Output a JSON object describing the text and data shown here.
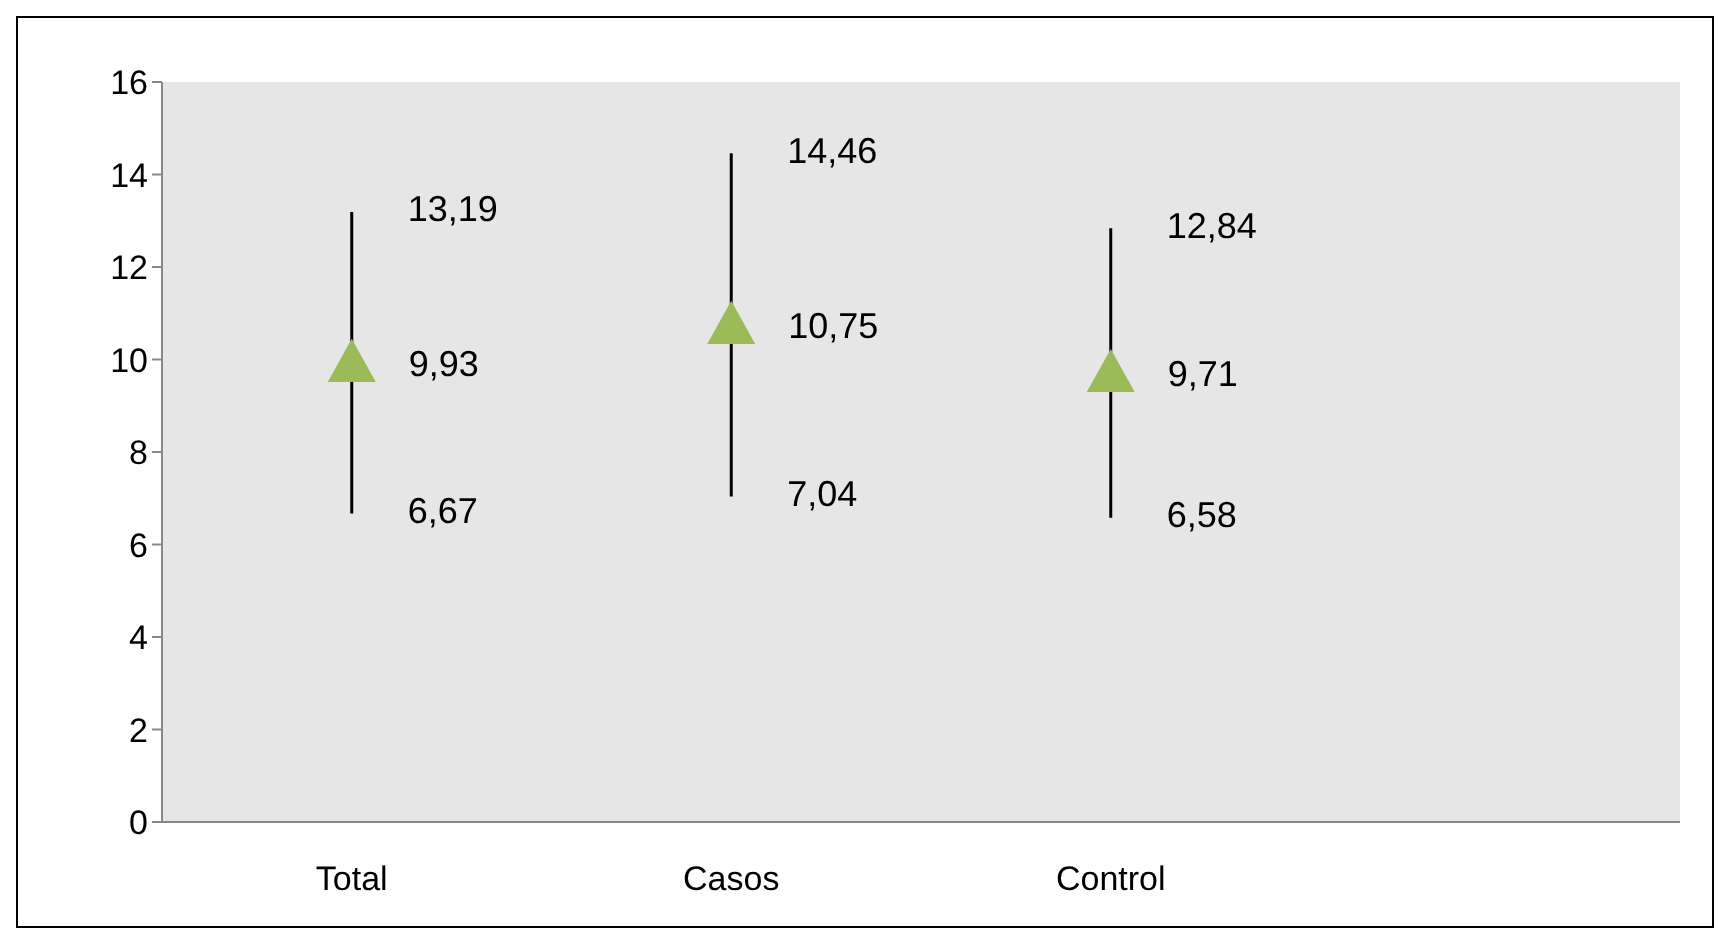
{
  "chart_data": {
    "type": "scatter",
    "categories": [
      "Total",
      "Casos",
      "Control",
      null
    ],
    "series": [
      {
        "color": "#9bbb59",
        "values": [
          9.93,
          10.75,
          9.71,
          null
        ],
        "errors": [
          [
            6.67,
            13.19
          ],
          [
            7.04,
            14.46
          ],
          [
            6.58,
            12.84
          ],
          null
        ],
        "value_labels": [
          "9,93",
          "10,75",
          "9,71",
          null
        ]
      }
    ],
    "annotations": [
      {
        "text": "13,19",
        "x": "Total",
        "y": 13.19
      },
      {
        "text": "6,67",
        "x": "Total",
        "y": 6.67
      },
      {
        "text": "14,46",
        "x": "Casos",
        "y": 14.46
      },
      {
        "text": "7,04",
        "x": "Casos",
        "y": 7.04
      },
      {
        "text": "12,84",
        "x": "Control",
        "y": 12.84
      },
      {
        "text": "6,58",
        "x": "Control",
        "y": 6.58
      }
    ],
    "ylim": [
      0,
      16
    ],
    "yticks": [
      0,
      2,
      4,
      6,
      8,
      10,
      12,
      14,
      16
    ],
    "marker": "triangle",
    "grid": false,
    "legend": false
  }
}
